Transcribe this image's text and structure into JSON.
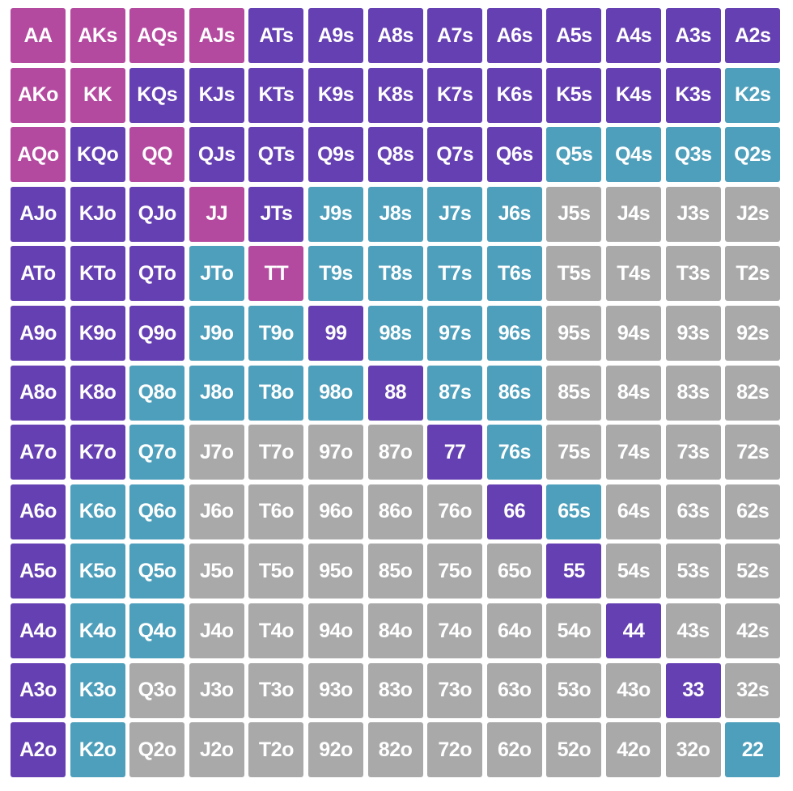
{
  "colors": {
    "pink": "#b44a9f",
    "purple": "#6540b2",
    "teal": "#4e9fbb",
    "gray": "#a9a9a9"
  },
  "rows": [
    [
      "AA",
      "AKs",
      "AQs",
      "AJs",
      "ATs",
      "A9s",
      "A8s",
      "A7s",
      "A6s",
      "A5s",
      "A4s",
      "A3s",
      "A2s"
    ],
    [
      "AKo",
      "KK",
      "KQs",
      "KJs",
      "KTs",
      "K9s",
      "K8s",
      "K7s",
      "K6s",
      "K5s",
      "K4s",
      "K3s",
      "K2s"
    ],
    [
      "AQo",
      "KQo",
      "QQ",
      "QJs",
      "QTs",
      "Q9s",
      "Q8s",
      "Q7s",
      "Q6s",
      "Q5s",
      "Q4s",
      "Q3s",
      "Q2s"
    ],
    [
      "AJo",
      "KJo",
      "QJo",
      "JJ",
      "JTs",
      "J9s",
      "J8s",
      "J7s",
      "J6s",
      "J5s",
      "J4s",
      "J3s",
      "J2s"
    ],
    [
      "ATo",
      "KTo",
      "QTo",
      "JTo",
      "TT",
      "T9s",
      "T8s",
      "T7s",
      "T6s",
      "T5s",
      "T4s",
      "T3s",
      "T2s"
    ],
    [
      "A9o",
      "K9o",
      "Q9o",
      "J9o",
      "T9o",
      "99",
      "98s",
      "97s",
      "96s",
      "95s",
      "94s",
      "93s",
      "92s"
    ],
    [
      "A8o",
      "K8o",
      "Q8o",
      "J8o",
      "T8o",
      "98o",
      "88",
      "87s",
      "86s",
      "85s",
      "84s",
      "83s",
      "82s"
    ],
    [
      "A7o",
      "K7o",
      "Q7o",
      "J7o",
      "T7o",
      "97o",
      "87o",
      "77",
      "76s",
      "75s",
      "74s",
      "73s",
      "72s"
    ],
    [
      "A6o",
      "K6o",
      "Q6o",
      "J6o",
      "T6o",
      "96o",
      "86o",
      "76o",
      "66",
      "65s",
      "64s",
      "63s",
      "62s"
    ],
    [
      "A5o",
      "K5o",
      "Q5o",
      "J5o",
      "T5o",
      "95o",
      "85o",
      "75o",
      "65o",
      "55",
      "54s",
      "53s",
      "52s"
    ],
    [
      "A4o",
      "K4o",
      "Q4o",
      "J4o",
      "T4o",
      "94o",
      "84o",
      "74o",
      "64o",
      "54o",
      "44",
      "43s",
      "42s"
    ],
    [
      "A3o",
      "K3o",
      "Q3o",
      "J3o",
      "T3o",
      "93o",
      "83o",
      "73o",
      "63o",
      "53o",
      "43o",
      "33",
      "32s"
    ],
    [
      "A2o",
      "K2o",
      "Q2o",
      "J2o",
      "T2o",
      "92o",
      "82o",
      "72o",
      "62o",
      "52o",
      "42o",
      "32o",
      "22"
    ]
  ],
  "cell_colors": [
    [
      "pink",
      "pink",
      "pink",
      "pink",
      "purple",
      "purple",
      "purple",
      "purple",
      "purple",
      "purple",
      "purple",
      "purple",
      "purple"
    ],
    [
      "pink",
      "pink",
      "purple",
      "purple",
      "purple",
      "purple",
      "purple",
      "purple",
      "purple",
      "purple",
      "purple",
      "purple",
      "teal"
    ],
    [
      "pink",
      "purple",
      "pink",
      "purple",
      "purple",
      "purple",
      "purple",
      "purple",
      "purple",
      "teal",
      "teal",
      "teal",
      "teal"
    ],
    [
      "purple",
      "purple",
      "purple",
      "pink",
      "purple",
      "teal",
      "teal",
      "teal",
      "teal",
      "gray",
      "gray",
      "gray",
      "gray"
    ],
    [
      "purple",
      "purple",
      "purple",
      "teal",
      "pink",
      "teal",
      "teal",
      "teal",
      "teal",
      "gray",
      "gray",
      "gray",
      "gray"
    ],
    [
      "purple",
      "purple",
      "purple",
      "teal",
      "teal",
      "purple",
      "teal",
      "teal",
      "teal",
      "gray",
      "gray",
      "gray",
      "gray"
    ],
    [
      "purple",
      "purple",
      "teal",
      "teal",
      "teal",
      "teal",
      "purple",
      "teal",
      "teal",
      "gray",
      "gray",
      "gray",
      "gray"
    ],
    [
      "purple",
      "purple",
      "teal",
      "gray",
      "gray",
      "gray",
      "gray",
      "purple",
      "teal",
      "gray",
      "gray",
      "gray",
      "gray"
    ],
    [
      "purple",
      "teal",
      "teal",
      "gray",
      "gray",
      "gray",
      "gray",
      "gray",
      "purple",
      "teal",
      "gray",
      "gray",
      "gray"
    ],
    [
      "purple",
      "teal",
      "teal",
      "gray",
      "gray",
      "gray",
      "gray",
      "gray",
      "gray",
      "purple",
      "gray",
      "gray",
      "gray"
    ],
    [
      "purple",
      "teal",
      "teal",
      "gray",
      "gray",
      "gray",
      "gray",
      "gray",
      "gray",
      "gray",
      "purple",
      "gray",
      "gray"
    ],
    [
      "purple",
      "teal",
      "gray",
      "gray",
      "gray",
      "gray",
      "gray",
      "gray",
      "gray",
      "gray",
      "gray",
      "purple",
      "gray"
    ],
    [
      "purple",
      "teal",
      "gray",
      "gray",
      "gray",
      "gray",
      "gray",
      "gray",
      "gray",
      "gray",
      "gray",
      "gray",
      "teal"
    ]
  ]
}
